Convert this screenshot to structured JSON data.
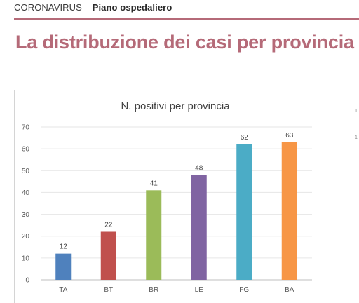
{
  "header": {
    "section": "CORONAVIRUS",
    "separator": " – ",
    "subtitle": "Piano ospedaliero"
  },
  "headline": "La distribuzione dei casi per provincia",
  "chart_data": {
    "type": "bar",
    "title": "N. positivi per provincia",
    "categories": [
      "TA",
      "BT",
      "BR",
      "LE",
      "FG",
      "BA"
    ],
    "values": [
      12,
      22,
      41,
      48,
      62,
      63
    ],
    "colors": [
      "#4f81bd",
      "#c0504d",
      "#9bbb59",
      "#8064a2",
      "#4bacc6",
      "#f79646"
    ],
    "ylim": [
      0,
      70
    ],
    "yticks": [
      "0",
      "10",
      "20",
      "30",
      "40",
      "50",
      "60",
      "70"
    ],
    "grid": true,
    "xlabel": "",
    "ylabel": ""
  },
  "margin_marks": [
    "1",
    "1"
  ]
}
